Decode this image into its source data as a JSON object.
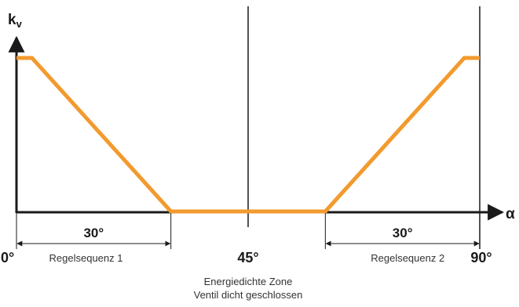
{
  "chart_data": {
    "type": "line",
    "y_axis_label": {
      "main": "k",
      "sub": "v"
    },
    "x_axis_label": "α",
    "xlim": [
      0,
      90
    ],
    "series": [
      {
        "x": [
          0,
          3,
          30,
          60,
          87,
          90
        ],
        "y": [
          1.0,
          1.0,
          0.0,
          0.0,
          1.0,
          1.0
        ]
      }
    ],
    "tick_labels": [
      {
        "x": 0,
        "text": "0°"
      },
      {
        "x": 45,
        "text": "45°"
      },
      {
        "x": 90,
        "text": "90°"
      }
    ],
    "spans": [
      {
        "from": 0,
        "to": 30,
        "text": "30°"
      },
      {
        "from": 60,
        "to": 90,
        "text": "30°"
      }
    ],
    "sequence_labels": [
      {
        "x": 13.5,
        "text": "Regelsequenz 1"
      },
      {
        "x": 76,
        "text": "Regelsequenz 2"
      }
    ],
    "zone_note": [
      "Energiedichte Zone",
      "Ventil dicht geschlossen"
    ],
    "colors": {
      "curve": "#F39A2E",
      "axes": "#1a1a1a"
    }
  }
}
